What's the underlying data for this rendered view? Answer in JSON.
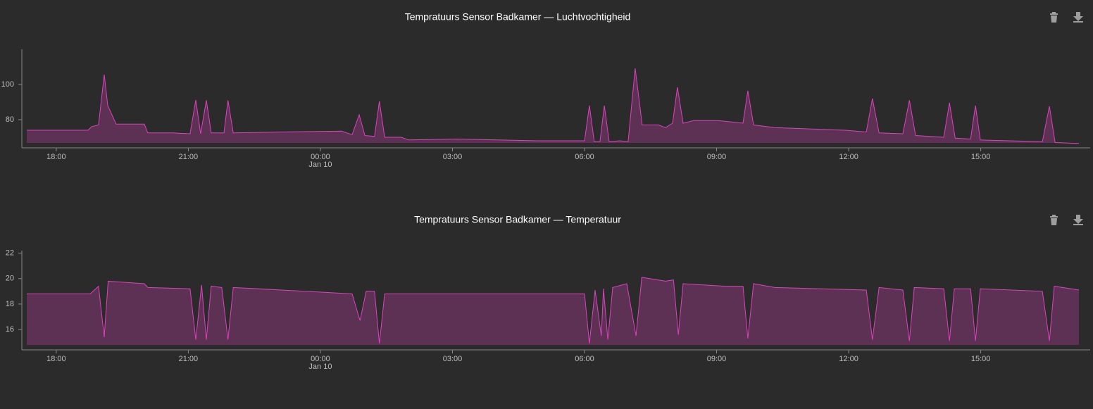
{
  "chart_data": [
    {
      "type": "area",
      "title": "Tempratuurs Sensor Badkamer — Luchtvochtigheid",
      "color": "#e040c0",
      "x": [
        17.33,
        18.72,
        18.8,
        18.96,
        19.09,
        19.17,
        19.36,
        20.0,
        20.08,
        20.64,
        21.04,
        21.17,
        21.28,
        21.41,
        21.52,
        21.81,
        21.9,
        22.02,
        23.12,
        24.48,
        24.72,
        24.88,
        25.01,
        25.23,
        25.34,
        25.46,
        25.84,
        26.0,
        27.12,
        28.96,
        30.0,
        30.11,
        30.22,
        30.35,
        30.45,
        30.56,
        30.8,
        30.99,
        31.15,
        31.31,
        31.68,
        31.84,
        32.0,
        32.11,
        32.24,
        32.48,
        33.04,
        33.6,
        33.71,
        33.84,
        34.32,
        35.92,
        36.4,
        36.54,
        36.69,
        37.23,
        37.38,
        37.52,
        38.16,
        38.29,
        38.42,
        38.77,
        38.88,
        38.99,
        40.4,
        40.56,
        40.69,
        41.23
      ],
      "values": [
        74,
        74,
        76,
        77,
        105.6,
        88,
        77.5,
        77.5,
        72.5,
        72.5,
        72,
        91.2,
        72,
        91,
        72.5,
        72.5,
        91,
        72.5,
        73,
        73.5,
        71.5,
        82.8,
        71,
        70.5,
        90.4,
        70,
        70,
        68.5,
        69,
        68,
        68,
        88,
        67.5,
        67.5,
        88,
        67.5,
        68,
        67.5,
        109.2,
        77,
        77,
        75.5,
        78,
        98.4,
        78,
        79.5,
        79.5,
        78,
        96.4,
        77,
        75.5,
        74,
        73,
        92,
        72.5,
        72,
        91,
        71,
        70,
        89.6,
        69.5,
        69,
        88,
        68.5,
        67.5,
        87.6,
        67,
        66.5
      ],
      "xlim": [
        17.33,
        41.23
      ],
      "ylim": [
        64,
        120
      ],
      "yticks": [
        80,
        100
      ],
      "xticks": [
        {
          "value": 18,
          "label": "18:00"
        },
        {
          "value": 21,
          "label": "21:00"
        },
        {
          "value": 24,
          "label": "00:00\nJan 10"
        },
        {
          "value": 27,
          "label": "03:00"
        },
        {
          "value": 30,
          "label": "06:00"
        },
        {
          "value": 33,
          "label": "09:00"
        },
        {
          "value": 36,
          "label": "12:00"
        },
        {
          "value": 39,
          "label": "15:00"
        }
      ]
    },
    {
      "type": "area",
      "title": "Tempratuurs Sensor Badkamer — Temperatuur",
      "color": "#e040c0",
      "x": [
        17.33,
        18.77,
        18.96,
        19.09,
        19.18,
        20.0,
        20.08,
        21.04,
        21.17,
        21.3,
        21.41,
        21.52,
        21.76,
        21.9,
        22.02,
        23.12,
        24.24,
        24.72,
        24.9,
        25.04,
        25.23,
        25.34,
        25.46,
        30.0,
        30.11,
        30.24,
        30.38,
        30.43,
        30.53,
        30.64,
        30.96,
        31.17,
        31.3,
        31.84,
        32.02,
        32.13,
        32.24,
        33.2,
        33.6,
        33.71,
        33.84,
        34.32,
        36.4,
        36.54,
        36.69,
        37.23,
        37.38,
        37.49,
        38.16,
        38.29,
        38.4,
        38.77,
        38.88,
        38.99,
        40.4,
        40.56,
        40.67,
        41.23
      ],
      "values": [
        18.8,
        18.8,
        19.4,
        15.4,
        19.8,
        19.6,
        19.3,
        19.2,
        15.2,
        19.5,
        15.2,
        19.4,
        19.3,
        15.2,
        19.3,
        19.1,
        18.9,
        18.8,
        16.7,
        19,
        19,
        14.9,
        18.8,
        18.8,
        14.9,
        19.1,
        15.5,
        19.2,
        15.2,
        19.3,
        19.6,
        15.5,
        20.1,
        19.8,
        19.9,
        15.6,
        19.6,
        19.4,
        19.4,
        15.3,
        19.6,
        19.3,
        19.1,
        15.2,
        19.3,
        19.1,
        15.1,
        19.3,
        19.2,
        15.1,
        19.2,
        19.2,
        15.1,
        19.2,
        19,
        15.1,
        19.4,
        19.1
      ],
      "xlim": [
        17.33,
        41.23
      ],
      "ylim": [
        14.4,
        22.2
      ],
      "yticks": [
        16,
        18,
        20,
        22
      ],
      "xticks": [
        {
          "value": 18,
          "label": "18:00"
        },
        {
          "value": 21,
          "label": "21:00"
        },
        {
          "value": 24,
          "label": "00:00\nJan 10"
        },
        {
          "value": 27,
          "label": "03:00"
        },
        {
          "value": 30,
          "label": "06:00"
        },
        {
          "value": 33,
          "label": "09:00"
        },
        {
          "value": 36,
          "label": "12:00"
        },
        {
          "value": 39,
          "label": "15:00"
        }
      ]
    }
  ]
}
